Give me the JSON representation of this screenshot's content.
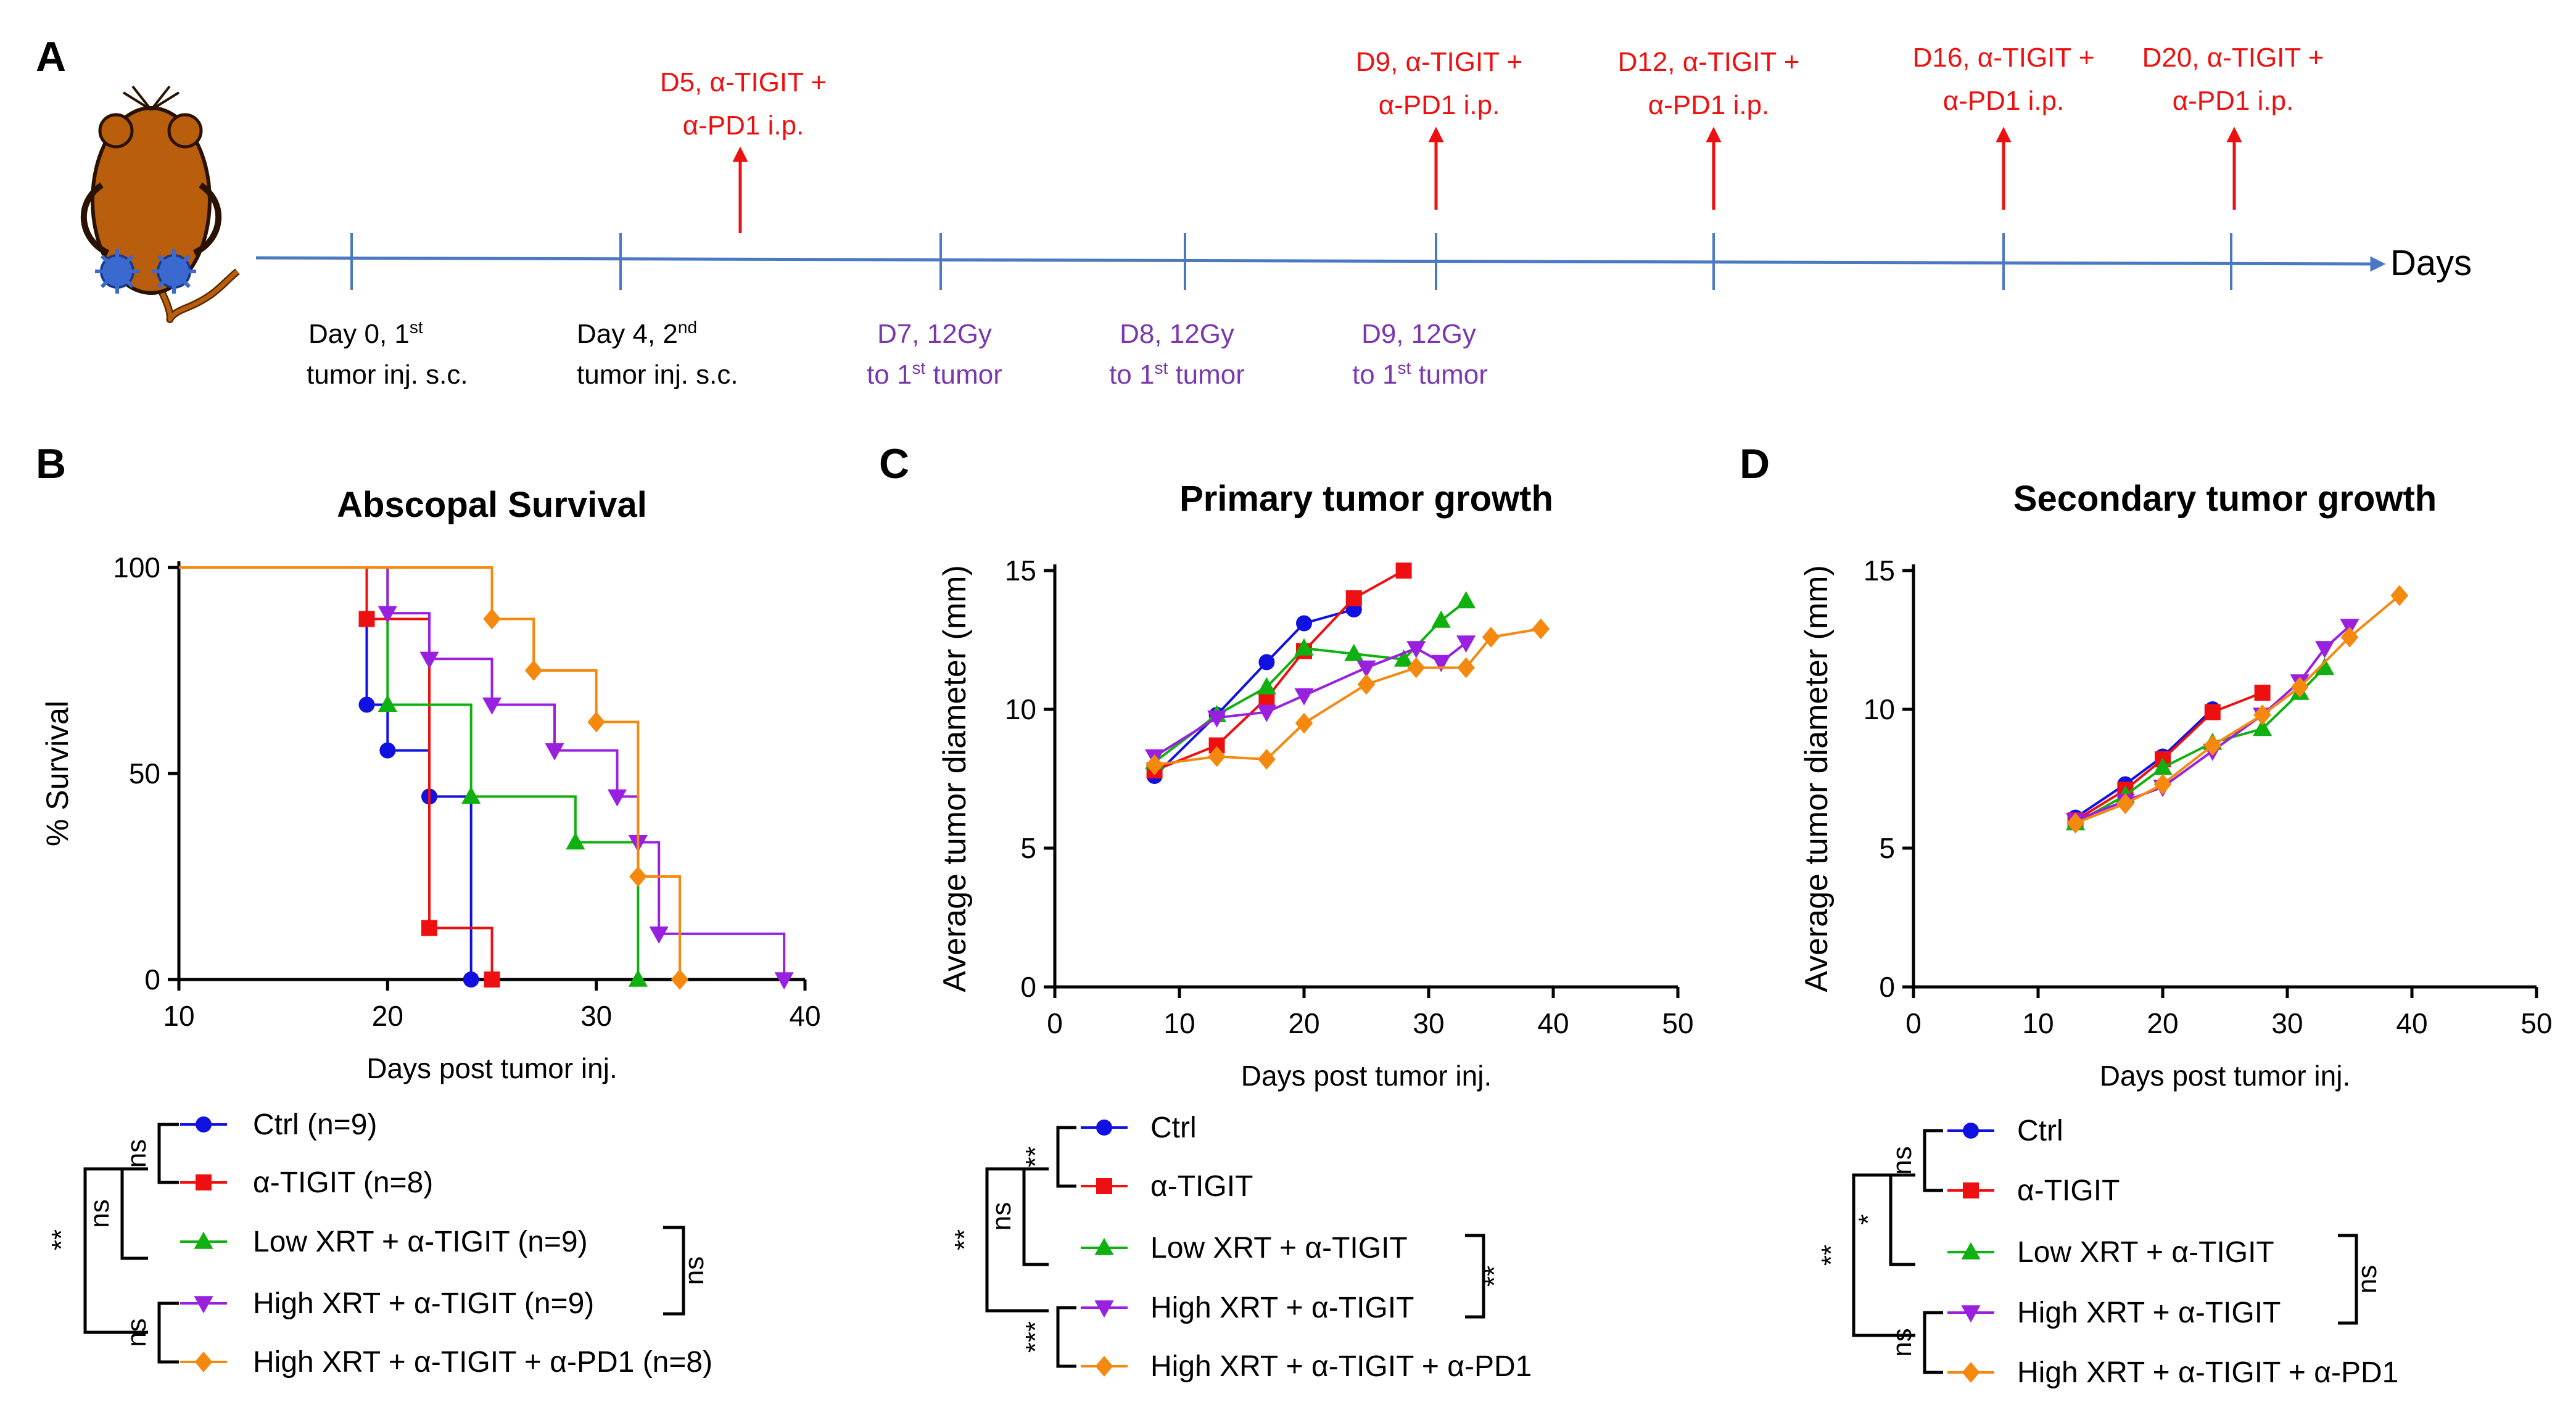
{
  "colors": {
    "ctrl": "#1010e0",
    "tigit": "#ee1010",
    "low": "#10b010",
    "high": "#9a20e0",
    "highpd1": "#f5880f",
    "timeline": "#4a78c2",
    "drug": "#ee1010",
    "radiation": "#7a38b0",
    "axis": "#000000",
    "mouse_body": "#b85e0c",
    "tumor": "#3a6ad0"
  },
  "panel_labels": [
    "A",
    "B",
    "C",
    "D"
  ],
  "timeline": {
    "axis_label": "Days",
    "drug_events": [
      {
        "line1": "D5, α-TIGIT +",
        "line2": "α-PD1 i.p."
      },
      {
        "line1": "D9, α-TIGIT +",
        "line2": "α-PD1 i.p."
      },
      {
        "line1": "D12, α-TIGIT +",
        "line2": "α-PD1 i.p."
      },
      {
        "line1": "D16, α-TIGIT +",
        "line2": "α-PD1 i.p."
      },
      {
        "line1": "D20, α-TIGIT +",
        "line2": "α-PD1 i.p."
      }
    ],
    "tumor_events": [
      {
        "line1a": "Day 0, 1",
        "sup1": "st",
        "line2": "tumor inj. s.c."
      },
      {
        "line1a": "Day 4, 2",
        "sup1": "nd",
        "line2": "tumor inj. s.c."
      }
    ],
    "radiation_events": [
      {
        "line1": "D7, 12Gy",
        "line2a": "to 1",
        "sup2": "st",
        "line2b": " tumor"
      },
      {
        "line1": "D8, 12Gy",
        "line2a": "to 1",
        "sup2": "st",
        "line2b": " tumor"
      },
      {
        "line1": "D9, 12Gy",
        "line2a": "to 1",
        "sup2": "st",
        "line2b": " tumor"
      }
    ]
  },
  "chart_data": [
    {
      "panel": "B",
      "type": "line",
      "step": true,
      "title": "Abscopal Survival",
      "xlabel": "Days post tumor inj.",
      "ylabel": "% Survival",
      "xlim": [
        10,
        40
      ],
      "ylim": [
        0,
        100
      ],
      "xticks": [
        10,
        20,
        30,
        40
      ],
      "yticks": [
        0,
        50,
        100
      ],
      "series": [
        {
          "name": "Ctrl (n=9)",
          "key": "ctrl",
          "marker": "circle",
          "x": [
            10,
            19,
            20,
            22,
            24
          ],
          "y": [
            100,
            66.7,
            55.6,
            44.4,
            0
          ]
        },
        {
          "name": "α-TIGIT (n=8)",
          "key": "tigit",
          "marker": "square",
          "x": [
            10,
            19,
            22,
            25
          ],
          "y": [
            100,
            87.5,
            12.5,
            0
          ]
        },
        {
          "name": "Low XRT + α-TIGIT (n=9)",
          "key": "low",
          "marker": "triangle",
          "x": [
            10,
            20,
            24,
            29,
            32
          ],
          "y": [
            100,
            66.7,
            44.4,
            33.3,
            0
          ]
        },
        {
          "name": "High XRT + α-TIGIT (n=9)",
          "key": "high",
          "marker": "tri-down",
          "x": [
            10,
            20,
            22,
            25,
            28,
            31,
            32,
            33,
            39
          ],
          "y": [
            100,
            88.9,
            77.8,
            66.7,
            55.6,
            44.4,
            33.3,
            11.1,
            0
          ]
        },
        {
          "name": "High XRT + α-TIGIT + α-PD1 (n=8)",
          "key": "highpd1",
          "marker": "diamond",
          "x": [
            10,
            25,
            27,
            30,
            32,
            34
          ],
          "y": [
            100,
            87.5,
            75,
            62.5,
            25,
            0
          ]
        }
      ],
      "legend_stats": {
        "ns": "ns",
        "double_star": "**"
      }
    },
    {
      "panel": "C",
      "type": "line",
      "title": "Primary tumor growth",
      "xlabel": "Days post tumor inj.",
      "ylabel": "Average tumor diameter (mm)",
      "xlim": [
        0,
        50
      ],
      "ylim": [
        0,
        15
      ],
      "xticks": [
        0,
        10,
        20,
        30,
        40,
        50
      ],
      "yticks": [
        0,
        5,
        10,
        15
      ],
      "series": [
        {
          "name": "Ctrl",
          "key": "ctrl",
          "marker": "circle",
          "x": [
            8,
            13,
            17,
            20,
            24
          ],
          "y": [
            7.6,
            9.8,
            11.7,
            13.1,
            13.6
          ]
        },
        {
          "name": "α-TIGIT",
          "key": "tigit",
          "marker": "square",
          "x": [
            8,
            13,
            17,
            20,
            24,
            28
          ],
          "y": [
            7.8,
            8.7,
            10.4,
            12.1,
            14.0,
            15.0
          ]
        },
        {
          "name": "Low XRT + α-TIGIT",
          "key": "low",
          "marker": "triangle",
          "x": [
            8,
            13,
            17,
            20,
            24,
            28,
            31,
            33
          ],
          "y": [
            8.1,
            9.8,
            10.8,
            12.2,
            12.0,
            11.8,
            13.2,
            13.9
          ]
        },
        {
          "name": "High XRT + α-TIGIT",
          "key": "high",
          "marker": "tri-down",
          "x": [
            8,
            13,
            17,
            20,
            25,
            29,
            31,
            33
          ],
          "y": [
            8.3,
            9.7,
            9.9,
            10.5,
            11.5,
            12.2,
            11.7,
            12.4
          ]
        },
        {
          "name": "High XRT + α-TIGIT + α-PD1",
          "key": "highpd1",
          "marker": "diamond",
          "x": [
            8,
            13,
            17,
            20,
            25,
            29,
            33,
            35,
            39
          ],
          "y": [
            8.0,
            8.3,
            8.2,
            9.5,
            10.9,
            11.5,
            11.5,
            12.6,
            12.9
          ]
        }
      ],
      "legend_stats": {
        "ns": "ns",
        "double_star": "**",
        "triple_star": "***"
      }
    },
    {
      "panel": "D",
      "type": "line",
      "title": "Secondary tumor growth",
      "xlabel": "Days post tumor inj.",
      "ylabel": "Average tumor diameter (mm)",
      "xlim": [
        0,
        50
      ],
      "ylim": [
        0,
        15
      ],
      "xticks": [
        0,
        10,
        20,
        30,
        40,
        50
      ],
      "yticks": [
        0,
        5,
        10,
        15
      ],
      "series": [
        {
          "name": "Ctrl",
          "key": "ctrl",
          "marker": "circle",
          "x": [
            13,
            17,
            20,
            24
          ],
          "y": [
            6.1,
            7.3,
            8.3,
            10.0
          ]
        },
        {
          "name": "α-TIGIT",
          "key": "tigit",
          "marker": "square",
          "x": [
            13,
            17,
            20,
            24,
            28
          ],
          "y": [
            6.0,
            7.1,
            8.2,
            9.9,
            10.6
          ]
        },
        {
          "name": "Low XRT + α-TIGIT",
          "key": "low",
          "marker": "triangle",
          "x": [
            13,
            17,
            20,
            24,
            28,
            31,
            33
          ],
          "y": [
            5.9,
            6.9,
            7.9,
            8.8,
            9.3,
            10.6,
            11.5
          ]
        },
        {
          "name": "High XRT + α-TIGIT",
          "key": "high",
          "marker": "tri-down",
          "x": [
            13,
            17,
            20,
            24,
            28,
            31,
            33,
            35
          ],
          "y": [
            6.0,
            6.7,
            7.2,
            8.5,
            9.8,
            11.0,
            12.2,
            13.0
          ]
        },
        {
          "name": "High XRT + α-TIGIT + α-PD1",
          "key": "highpd1",
          "marker": "diamond",
          "x": [
            13,
            17,
            20,
            24,
            28,
            31,
            35,
            39
          ],
          "y": [
            5.9,
            6.6,
            7.3,
            8.7,
            9.8,
            10.8,
            12.6,
            14.1
          ]
        }
      ],
      "legend_stats": {
        "ns": "ns",
        "double_star": "**",
        "single_star": "*"
      }
    }
  ]
}
